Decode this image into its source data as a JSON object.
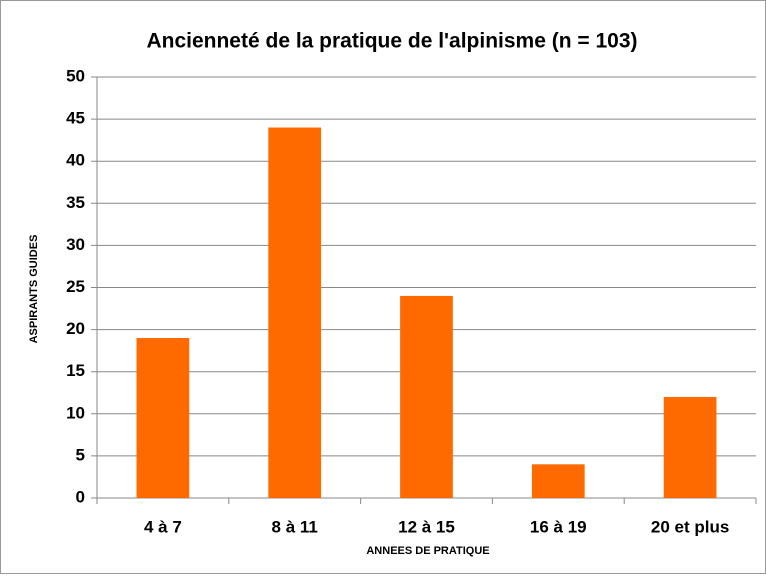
{
  "chart_data": {
    "type": "bar",
    "title": "Ancienneté de la pratique de l'alpinisme (n = 103)",
    "x_label": "ANNEES DE PRATIQUE",
    "y_label": "ASPIRANTS GUIDES",
    "categories": [
      "4 à 7",
      "8 à 11",
      "12 à 15",
      "16 à 19",
      "20 et plus"
    ],
    "values": [
      19,
      44,
      24,
      4,
      12
    ],
    "color": "#ff6a00",
    "ylim": [
      0,
      50
    ],
    "yticks": [
      0,
      5,
      10,
      15,
      20,
      25,
      30,
      35,
      40,
      45,
      50
    ],
    "grid": true
  }
}
